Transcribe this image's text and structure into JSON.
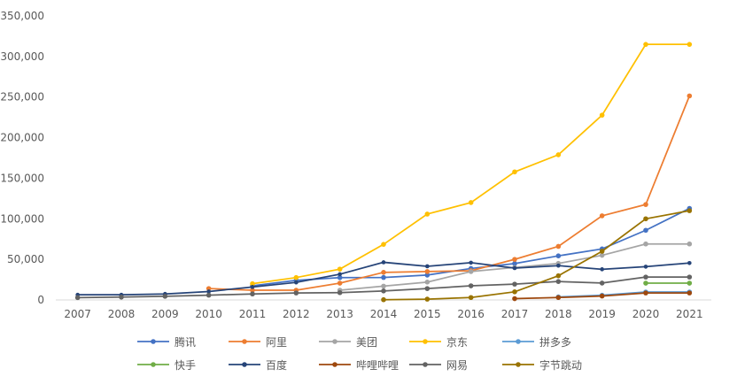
{
  "chart_data": {
    "type": "line",
    "title": "",
    "xlabel": "",
    "ylabel": "",
    "ylim": [
      0,
      350000
    ],
    "yticks": [
      "0",
      "50,000",
      "100,000",
      "150,000",
      "200,000",
      "250,000",
      "300,000",
      "350,000"
    ],
    "ytick_values": [
      0,
      50000,
      100000,
      150000,
      200000,
      250000,
      300000,
      350000
    ],
    "categories": [
      "2007",
      "2008",
      "2009",
      "2010",
      "2011",
      "2012",
      "2013",
      "2014",
      "2015",
      "2016",
      "2017",
      "2018",
      "2019",
      "2020",
      "2021"
    ],
    "grid": "horizontal baseline only",
    "legend_position": "bottom",
    "series": [
      {
        "name": "腾讯",
        "color": "#4472C4",
        "values": [
          null,
          null,
          null,
          null,
          17446,
          24160,
          27492,
          27690,
          30641,
          38775,
          44796,
          54309,
          62885,
          85858,
          112771
        ]
      },
      {
        "name": "阿里",
        "color": "#ED7D31",
        "values": [
          null,
          null,
          null,
          14000,
          12000,
          12000,
          20700,
          34000,
          35000,
          36000,
          50000,
          66000,
          103700,
          117600,
          251462
        ]
      },
      {
        "name": "美团",
        "color": "#A5A5A5",
        "values": [
          null,
          null,
          null,
          null,
          null,
          null,
          12000,
          17000,
          22000,
          35000,
          40000,
          45000,
          55000,
          69000,
          69000
        ]
      },
      {
        "name": "京东",
        "color": "#FFC000",
        "values": [
          null,
          null,
          null,
          null,
          20000,
          27600,
          38000,
          68500,
          105800,
          120000,
          157800,
          178900,
          227700,
          314906,
          314906
        ]
      },
      {
        "name": "拼多多",
        "color": "#5B9BD5",
        "values": [
          null,
          null,
          null,
          null,
          null,
          null,
          null,
          null,
          null,
          null,
          null,
          3700,
          5800,
          9800,
          9800
        ]
      },
      {
        "name": "快手",
        "color": "#70AD47",
        "values": [
          null,
          null,
          null,
          null,
          null,
          null,
          null,
          null,
          null,
          null,
          null,
          null,
          null,
          20700,
          20700
        ]
      },
      {
        "name": "百度",
        "color": "#264478",
        "values": [
          6400,
          6400,
          7400,
          10400,
          16000,
          21600,
          31700,
          46400,
          41500,
          45900,
          39300,
          42300,
          37800,
          41000,
          45500
        ]
      },
      {
        "name": "哔哩哔哩",
        "color": "#9E480E",
        "values": [
          null,
          null,
          null,
          null,
          null,
          null,
          null,
          null,
          null,
          null,
          1600,
          3000,
          4800,
          8600,
          8600
        ]
      },
      {
        "name": "网易",
        "color": "#636363",
        "values": [
          2900,
          3500,
          4500,
          5900,
          7400,
          8600,
          9000,
          11100,
          14000,
          17400,
          19500,
          22700,
          20800,
          28200,
          28200
        ]
      },
      {
        "name": "字节跳动",
        "color": "#997300",
        "values": [
          null,
          null,
          null,
          null,
          null,
          null,
          null,
          300,
          1000,
          3000,
          10000,
          29800,
          60000,
          100000,
          110000
        ]
      }
    ]
  }
}
